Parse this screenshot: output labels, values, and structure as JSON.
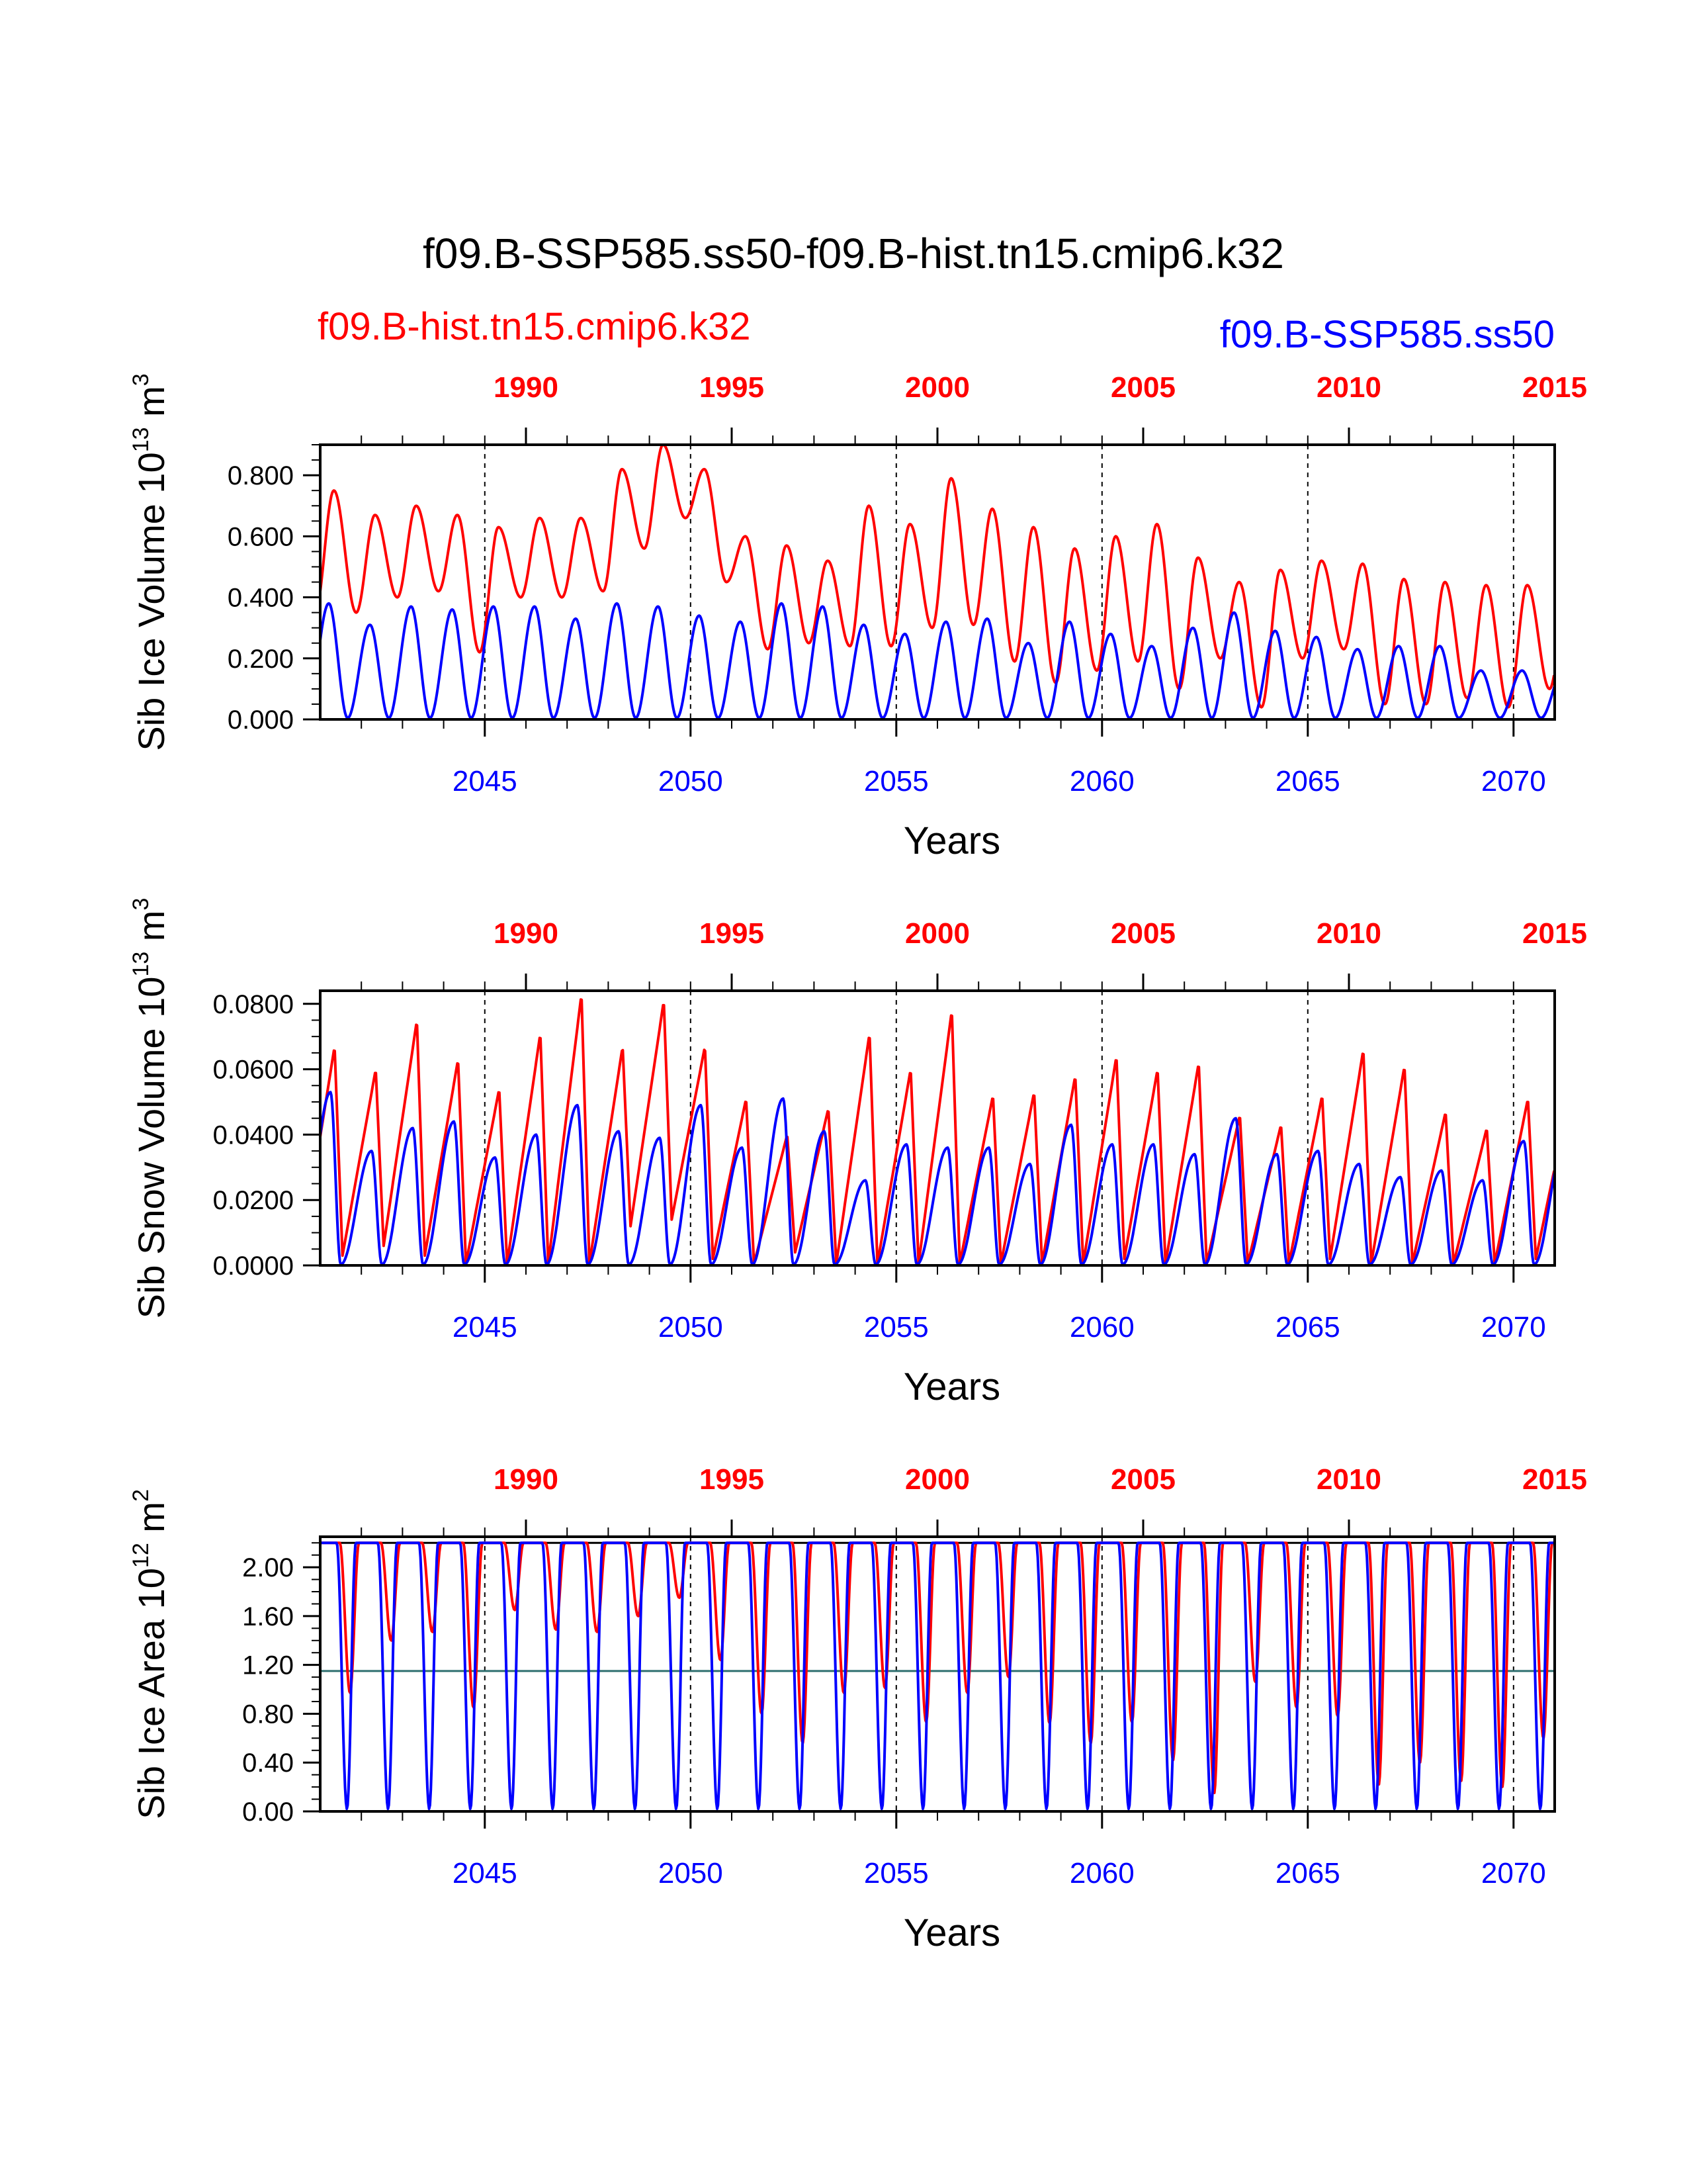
{
  "figure": {
    "title": "f09.B-SSP585.ss50-f09.B-hist.tn15.cmip6.k32",
    "left_label": "f09.B-hist.tn15.cmip6.k32",
    "right_label": "f09.B-SSP585.ss50"
  },
  "colors": {
    "hist": "#ff0000",
    "ssp": "#0000ff",
    "mean_line": "#2f6f6f",
    "axes": "#000000"
  },
  "chart_data": [
    {
      "type": "line",
      "ylabel": "Sib Ice Volume",
      "ylabel_unit": "10",
      "ylabel_exp": "13",
      "ylabel_unit2": "m",
      "ylabel_unit2_exp": "3",
      "xlabel": "Years",
      "ylim": [
        0,
        0.9
      ],
      "yticks": [
        0.0,
        0.2,
        0.4,
        0.6,
        0.8
      ],
      "ytick_labels": [
        "0.000",
        "0.200",
        "0.400",
        "0.600",
        "0.800"
      ],
      "xlim_bottom": [
        2041,
        2071
      ],
      "xticks_bottom": [
        2045,
        2050,
        2055,
        2060,
        2065,
        2070
      ],
      "xtick_labels_bottom": [
        "2045",
        "2050",
        "2055",
        "2060",
        "2065",
        "2070"
      ],
      "xlim_top": [
        1985,
        2015
      ],
      "xticks_top": [
        1990,
        1995,
        2000,
        2005,
        2010,
        2015
      ],
      "xtick_labels_top": [
        "1990",
        "1995",
        "2000",
        "2005",
        "2010",
        "2015"
      ],
      "dashed_year_lines": [
        2045,
        2050,
        2055,
        2060,
        2065,
        2070
      ],
      "series": [
        {
          "key": "hist",
          "axis": "top",
          "peak_month": 4.0,
          "trough_month": 10.5,
          "shape": "smooth",
          "peaks": [
            0.75,
            0.67,
            0.7,
            0.67,
            0.63,
            0.66,
            0.66,
            0.82,
            0.9,
            0.82,
            0.6,
            0.57,
            0.52,
            0.7,
            0.64,
            0.79,
            0.69,
            0.63,
            0.56,
            0.6,
            0.64,
            0.53,
            0.45,
            0.49,
            0.52,
            0.51,
            0.46,
            0.45,
            0.44,
            0.44
          ],
          "troughs": [
            0.35,
            0.4,
            0.42,
            0.22,
            0.4,
            0.4,
            0.42,
            0.56,
            0.66,
            0.45,
            0.23,
            0.25,
            0.24,
            0.24,
            0.3,
            0.31,
            0.19,
            0.12,
            0.16,
            0.19,
            0.1,
            0.2,
            0.04,
            0.2,
            0.23,
            0.05,
            0.05,
            0.07,
            0.04,
            0.1
          ]
        },
        {
          "key": "ssp",
          "axis": "bottom",
          "peak_month": 2.5,
          "trough_month": 8.0,
          "shape": "smooth",
          "peaks": [
            0.38,
            0.31,
            0.37,
            0.36,
            0.37,
            0.37,
            0.33,
            0.38,
            0.37,
            0.34,
            0.32,
            0.38,
            0.37,
            0.31,
            0.28,
            0.32,
            0.33,
            0.25,
            0.32,
            0.28,
            0.24,
            0.3,
            0.35,
            0.29,
            0.27,
            0.23,
            0.24,
            0.24,
            0.16,
            0.16
          ],
          "troughs": [
            0.005,
            0.005,
            0.005,
            0.005,
            0.005,
            0.005,
            0.005,
            0.005,
            0.005,
            0.005,
            0.005,
            0.005,
            0.005,
            0.005,
            0.005,
            0.005,
            0.005,
            0.005,
            0.005,
            0.005,
            0.005,
            0.005,
            0.005,
            0.005,
            0.005,
            0.005,
            0.005,
            0.005,
            0.005,
            0.005
          ]
        }
      ]
    },
    {
      "type": "line",
      "ylabel": "Sib Snow Volume",
      "ylabel_unit": "10",
      "ylabel_exp": "13",
      "ylabel_unit2": "m",
      "ylabel_unit2_exp": "3",
      "xlabel": "Years",
      "ylim": [
        0,
        0.084
      ],
      "yticks": [
        0.0,
        0.02,
        0.04,
        0.06,
        0.08
      ],
      "ytick_labels": [
        "0.0000",
        "0.0200",
        "0.0400",
        "0.0600",
        "0.0800"
      ],
      "xlim_bottom": [
        2041,
        2071
      ],
      "xticks_bottom": [
        2045,
        2050,
        2055,
        2060,
        2065,
        2070
      ],
      "xtick_labels_bottom": [
        "2045",
        "2050",
        "2055",
        "2060",
        "2065",
        "2070"
      ],
      "xlim_top": [
        1985,
        2015
      ],
      "xticks_top": [
        1990,
        1995,
        2000,
        2005,
        2010,
        2015
      ],
      "xtick_labels_top": [
        "1990",
        "1995",
        "2000",
        "2005",
        "2010",
        "2015"
      ],
      "dashed_year_lines": [
        2045,
        2050,
        2055,
        2060,
        2065,
        2070
      ],
      "series": [
        {
          "key": "hist",
          "axis": "top",
          "peak_month": 4.2,
          "trough_month": 6.5,
          "shape": "sawtooth",
          "peaks": [
            0.067,
            0.06,
            0.075,
            0.063,
            0.054,
            0.071,
            0.083,
            0.067,
            0.081,
            0.067,
            0.051,
            0.04,
            0.048,
            0.071,
            0.06,
            0.078,
            0.052,
            0.053,
            0.058,
            0.064,
            0.06,
            0.062,
            0.046,
            0.043,
            0.052,
            0.066,
            0.061,
            0.047,
            0.042,
            0.051
          ],
          "troughs": [
            0.003,
            0.006,
            0.003,
            0.0005,
            0.0005,
            0.0005,
            0.0005,
            0.012,
            0.014,
            0.002,
            0.0005,
            0.004,
            0.0005,
            0.0005,
            0.0005,
            0.0005,
            0.0005,
            0.0005,
            0.0005,
            0.002,
            0.0005,
            0.0005,
            0.0005,
            0.0005,
            0.002,
            0.0005,
            0.0005,
            0.0005,
            0.0005,
            0.002
          ]
        },
        {
          "key": "ssp",
          "axis": "bottom",
          "peak_month": 3.0,
          "trough_month": 6.0,
          "shape": "smooth",
          "peaks": [
            0.053,
            0.035,
            0.042,
            0.044,
            0.033,
            0.04,
            0.049,
            0.041,
            0.039,
            0.049,
            0.036,
            0.051,
            0.041,
            0.026,
            0.037,
            0.036,
            0.036,
            0.031,
            0.043,
            0.037,
            0.037,
            0.034,
            0.045,
            0.034,
            0.035,
            0.031,
            0.027,
            0.029,
            0.026,
            0.038
          ],
          "troughs": [
            0.0003,
            0.0003,
            0.0003,
            0.0003,
            0.0003,
            0.0003,
            0.0003,
            0.0003,
            0.0003,
            0.0003,
            0.0003,
            0.0003,
            0.0003,
            0.0003,
            0.0003,
            0.0003,
            0.0003,
            0.0003,
            0.0003,
            0.0003,
            0.0003,
            0.0003,
            0.0003,
            0.0003,
            0.0003,
            0.0003,
            0.0003,
            0.0003,
            0.0003,
            0.0003
          ]
        }
      ]
    },
    {
      "type": "line",
      "ylabel": "Sib Ice Area",
      "ylabel_unit": "10",
      "ylabel_exp": "12",
      "ylabel_unit2": "m",
      "ylabel_unit2_exp": "2",
      "xlabel": "Years",
      "ylim": [
        0,
        2.25
      ],
      "yticks": [
        0.0,
        0.4,
        0.8,
        1.2,
        1.6,
        2.0
      ],
      "ytick_labels": [
        "0.00",
        "0.40",
        "0.80",
        "1.20",
        "1.60",
        "2.00"
      ],
      "xlim_bottom": [
        2041,
        2071
      ],
      "xticks_bottom": [
        2045,
        2050,
        2055,
        2060,
        2065,
        2070
      ],
      "xtick_labels_bottom": [
        "2045",
        "2050",
        "2055",
        "2060",
        "2065",
        "2070"
      ],
      "xlim_top": [
        1985,
        2015
      ],
      "xticks_top": [
        1990,
        1995,
        2000,
        2005,
        2010,
        2015
      ],
      "xtick_labels_top": [
        "1990",
        "1995",
        "2000",
        "2005",
        "2010",
        "2015"
      ],
      "dashed_year_lines": [
        2045,
        2050,
        2055,
        2060,
        2065,
        2070
      ],
      "reference_lines": [
        1.15,
        2.2
      ],
      "series": [
        {
          "key": "hist",
          "axis": "top",
          "peak_month": 0.5,
          "trough_month": 8.7,
          "shape": "dip",
          "peaks": [
            2.2,
            2.2,
            2.2,
            2.2,
            2.2,
            2.2,
            2.2,
            2.2,
            2.2,
            2.2,
            2.2,
            2.2,
            2.2,
            2.2,
            2.2,
            2.2,
            2.2,
            2.2,
            2.2,
            2.2,
            2.2,
            2.2,
            2.2,
            2.2,
            2.2,
            2.2,
            2.2,
            2.2,
            2.2,
            2.2
          ],
          "troughs": [
            0.97,
            1.4,
            1.47,
            0.85,
            1.65,
            1.49,
            1.47,
            1.6,
            1.75,
            1.24,
            0.8,
            0.56,
            0.97,
            1.01,
            0.73,
            0.97,
            1.1,
            0.72,
            0.56,
            0.73,
            0.42,
            0.15,
            1.06,
            0.85,
            0.78,
            0.22,
            0.4,
            0.25,
            0.2,
            0.6
          ]
        },
        {
          "key": "ssp",
          "axis": "bottom",
          "peak_month": 0.5,
          "trough_month": 7.8,
          "shape": "dip",
          "peaks": [
            2.2,
            2.2,
            2.2,
            2.2,
            2.2,
            2.2,
            2.2,
            2.2,
            2.2,
            2.2,
            2.2,
            2.2,
            2.2,
            2.2,
            2.2,
            2.2,
            2.2,
            2.2,
            2.2,
            2.2,
            2.2,
            2.2,
            2.2,
            2.2,
            2.2,
            2.2,
            2.2,
            2.2,
            2.2,
            2.2
          ],
          "troughs": [
            0.02,
            0.02,
            0.02,
            0.02,
            0.02,
            0.02,
            0.02,
            0.02,
            0.02,
            0.02,
            0.02,
            0.02,
            0.02,
            0.02,
            0.02,
            0.02,
            0.02,
            0.02,
            0.02,
            0.02,
            0.02,
            0.02,
            0.02,
            0.02,
            0.02,
            0.02,
            0.02,
            0.02,
            0.02,
            0.02
          ]
        }
      ]
    }
  ]
}
